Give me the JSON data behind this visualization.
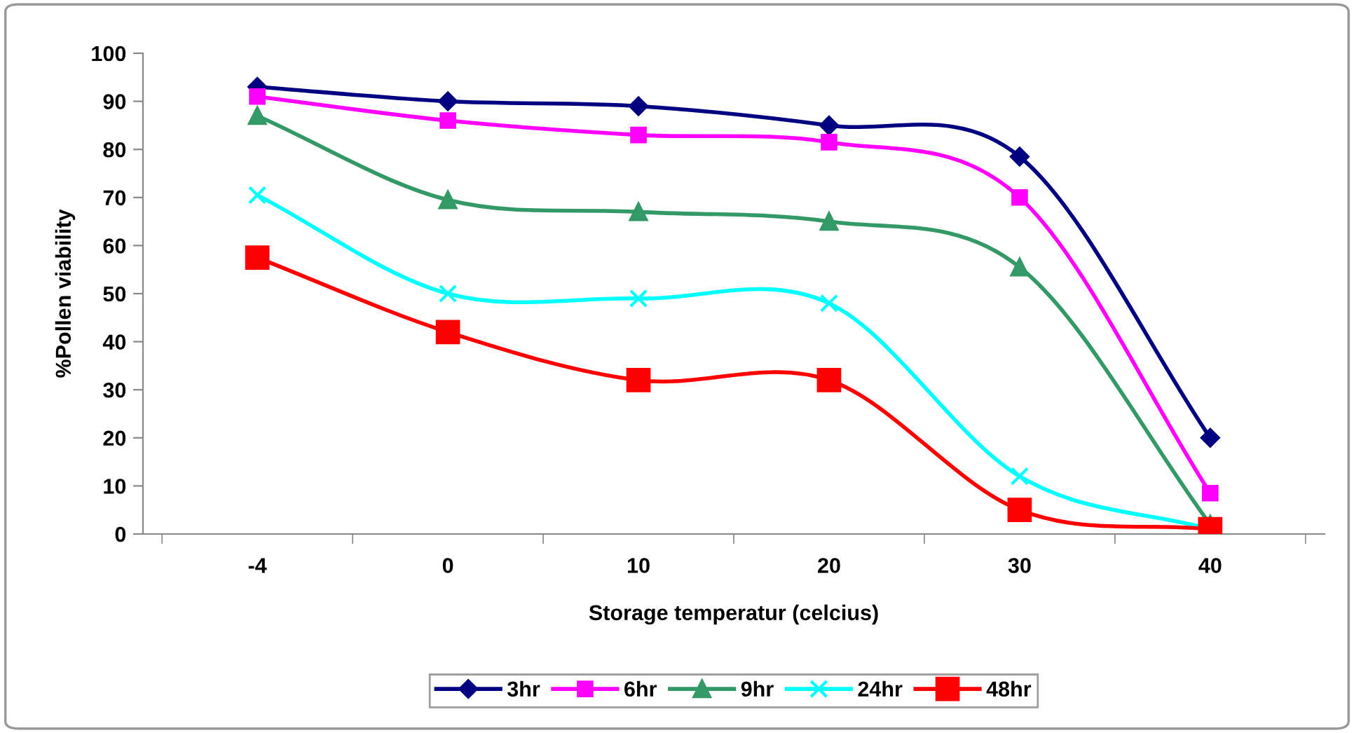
{
  "chart_data": {
    "type": "line",
    "xlabel": "Storage temperatur (celcius)",
    "ylabel": "%Pollen viability",
    "categories": [
      "-4",
      "0",
      "10",
      "20",
      "30",
      "40"
    ],
    "ylim": [
      0,
      100
    ],
    "yticks": [
      0,
      10,
      20,
      30,
      40,
      50,
      60,
      70,
      80,
      90,
      100
    ],
    "grid": false,
    "legend": "bottom",
    "series": [
      {
        "name": "3hr",
        "color": "#000080",
        "marker": "diamond",
        "values": [
          93,
          90,
          89,
          85,
          78.5,
          20
        ]
      },
      {
        "name": "6hr",
        "color": "#ff00ff",
        "marker": "square",
        "values": [
          91,
          86,
          83,
          81.5,
          70,
          8.5
        ]
      },
      {
        "name": "9hr",
        "color": "#339966",
        "marker": "triangle",
        "values": [
          87,
          69.5,
          67,
          65,
          55.5,
          2
        ]
      },
      {
        "name": "24hr",
        "color": "#00ffff",
        "marker": "cross",
        "values": [
          70.5,
          50,
          49,
          48,
          12,
          1
        ]
      },
      {
        "name": "48hr",
        "color": "#ff0000",
        "marker": "square",
        "values": [
          57.5,
          42,
          32,
          32,
          5,
          1
        ]
      }
    ]
  }
}
